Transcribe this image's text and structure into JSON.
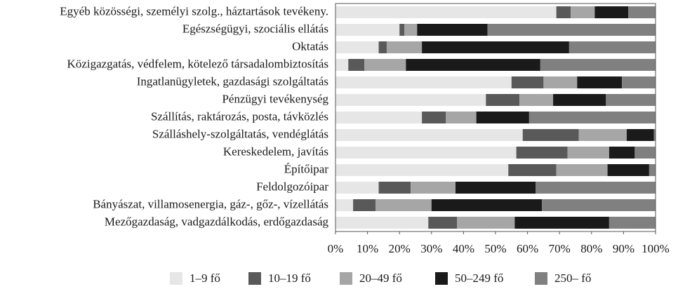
{
  "chart_data": {
    "type": "stacked-bar-horizontal",
    "categories": [
      "Egyéb közösségi, személyi szolg., háztartások tevékeny.",
      "Egészségügyi, szociális ellátás",
      "Oktatás",
      "Közigazgatás, védfelem, kötelező társadalombiztosítás",
      "Ingatlanügyletek, gazdasági szolgáltatás",
      "Pénzügyi tevékenység",
      "Szállítás, raktározás, posta, távközlés",
      "Szálláshely-szolgáltatás, vendéglátás",
      "Kereskedelem, javítás",
      "Építőipar",
      "Feldolgozóipar",
      "Bányászat, villamosenergia, gáz-, gőz-, vízellátás",
      "Mezőgazdaság, vadgazdálkodás, erdőgazdaság"
    ],
    "series": [
      {
        "name": "1–9 fő",
        "color": "#e6e6e6",
        "values": [
          69,
          20,
          13.5,
          4,
          55,
          47,
          27,
          58.5,
          56.5,
          54,
          13.5,
          5.5,
          29
        ]
      },
      {
        "name": "10–19 fő",
        "color": "#595959",
        "values": [
          4.5,
          1.5,
          2.5,
          5,
          10,
          10.5,
          7.5,
          17.5,
          16,
          15,
          10,
          7,
          9
        ]
      },
      {
        "name": "20–49 fő",
        "color": "#a6a6a6",
        "values": [
          7.5,
          4,
          11,
          13,
          10.5,
          10.5,
          9.5,
          15,
          13,
          16,
          14,
          17.5,
          18
        ]
      },
      {
        "name": "50–249 fő",
        "color": "#1a1a1a",
        "values": [
          10.5,
          22,
          46,
          42,
          14,
          16.5,
          16.5,
          8.5,
          8,
          13,
          25,
          34.5,
          29.5
        ]
      },
      {
        "name": "250– fő",
        "color": "#808080",
        "values": [
          8.5,
          52.5,
          27,
          36,
          10.5,
          15.5,
          39.5,
          0.5,
          6.5,
          2,
          37.5,
          35.5,
          14.5
        ]
      }
    ],
    "xlim": [
      0,
      100
    ],
    "xticks": [
      {
        "value": 0,
        "label": "0%"
      },
      {
        "value": 10,
        "label": "10%"
      },
      {
        "value": 20,
        "label": "20%"
      },
      {
        "value": 30,
        "label": "30%"
      },
      {
        "value": 40,
        "label": "40%"
      },
      {
        "value": 50,
        "label": "50%"
      },
      {
        "value": 60,
        "label": "60%"
      },
      {
        "value": 70,
        "label": "70%"
      },
      {
        "value": 80,
        "label": "80%"
      },
      {
        "value": 90,
        "label": "90%"
      },
      {
        "value": 100,
        "label": "100%"
      }
    ],
    "legend": "bottom"
  }
}
